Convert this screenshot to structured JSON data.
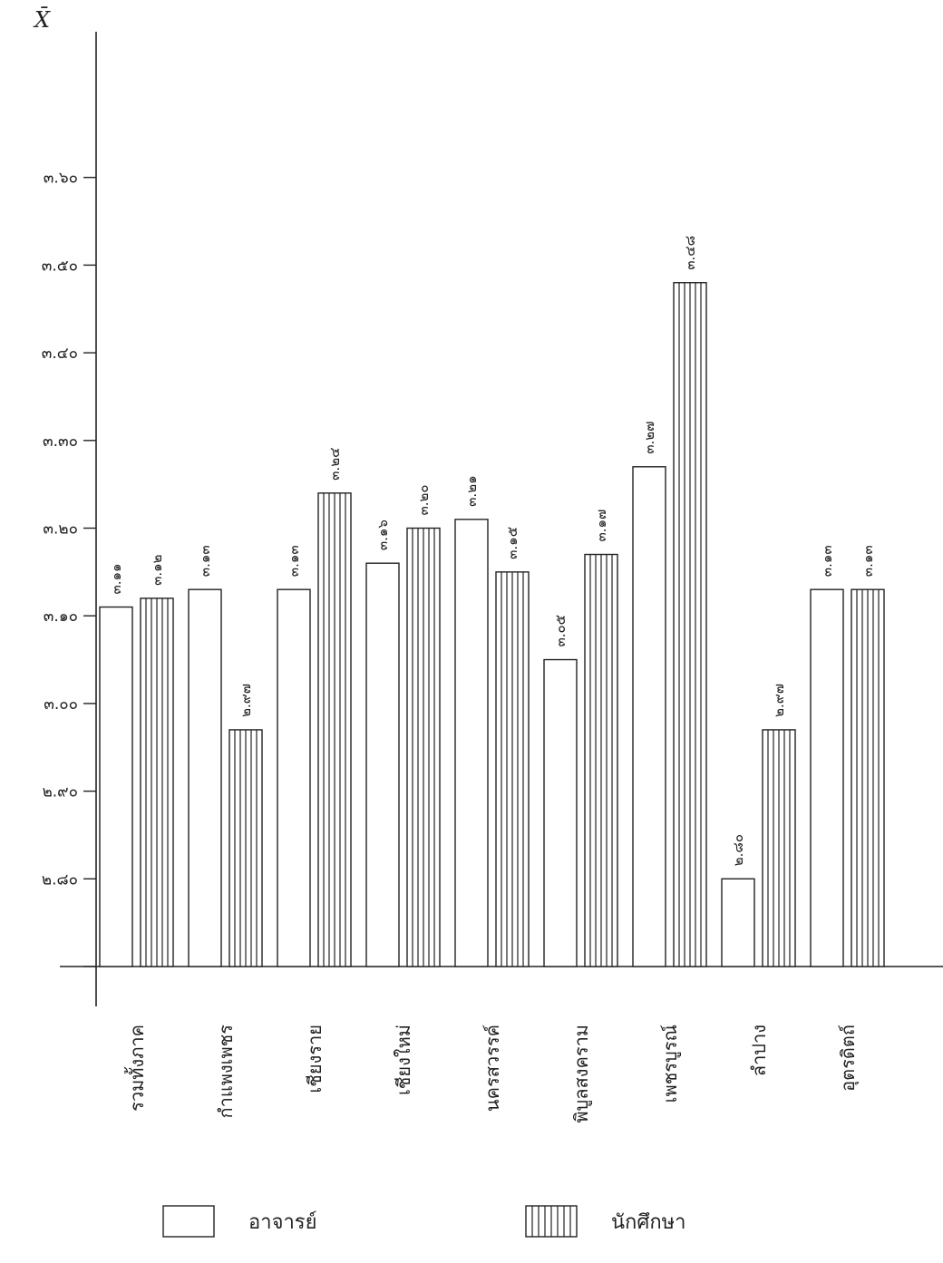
{
  "chart_data": {
    "type": "bar",
    "ylabel": "X̄",
    "ylim": [
      2.7,
      3.7
    ],
    "yticks": [
      {
        "value": 2.8,
        "label": "๒.๘๐"
      },
      {
        "value": 2.9,
        "label": "๒.๙๐"
      },
      {
        "value": 3.0,
        "label": "๓.๐๐"
      },
      {
        "value": 3.1,
        "label": "๓.๑๐"
      },
      {
        "value": 3.2,
        "label": "๓.๒๐"
      },
      {
        "value": 3.3,
        "label": "๓.๓๐"
      },
      {
        "value": 3.4,
        "label": "๓.๔๐"
      },
      {
        "value": 3.5,
        "label": "๓.๕๐"
      },
      {
        "value": 3.6,
        "label": "๓.๖๐"
      }
    ],
    "unlabeled_ticks": [
      2.7
    ],
    "categories": [
      "รวมทั้งภาค",
      "กำแพงเพชร",
      "เชียงราย",
      "เชียงใหม่",
      "นครสวรรค์",
      "พิบูลสงคราม",
      "เพชรบูรณ์",
      "ลำปาง",
      "อุตรดิตถ์"
    ],
    "series": [
      {
        "name": "อาจารย์",
        "pattern": "plain",
        "values": [
          3.11,
          3.13,
          3.13,
          3.16,
          3.21,
          3.05,
          3.27,
          2.8,
          3.13
        ],
        "labels": [
          "๓.๑๑",
          "๓.๑๓",
          "๓.๑๓",
          "๓.๑๖",
          "๓.๒๑",
          "๓.๐๕",
          "๓.๒๗",
          "๒.๘๐",
          "๓.๑๓"
        ]
      },
      {
        "name": "นักศึกษา",
        "pattern": "vertical-stripes",
        "values": [
          3.12,
          2.97,
          3.24,
          3.2,
          3.15,
          3.17,
          3.48,
          2.97,
          3.13
        ],
        "labels": [
          "๓.๑๒",
          "๒.๙๗",
          "๓.๒๔",
          "๓.๒๐",
          "๓.๑๕",
          "๓.๑๗",
          "๓.๔๘",
          "๒.๙๗",
          "๓.๑๓"
        ]
      }
    ],
    "legend": "bottom",
    "grid": false
  },
  "colors": {
    "ink": "#222222"
  }
}
